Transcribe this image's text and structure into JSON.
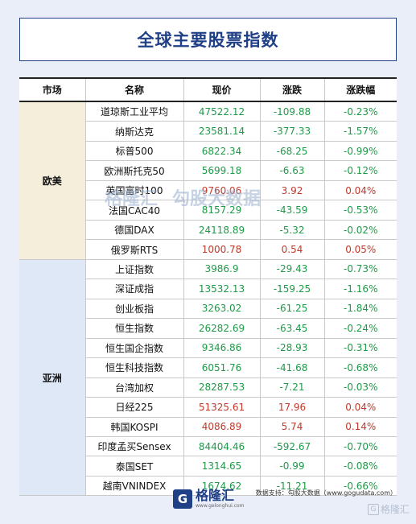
{
  "title": "全球主要股票指数",
  "headers": [
    "市场",
    "名称",
    "现价",
    "涨跌",
    "涨跌幅"
  ],
  "regions": [
    {
      "name": "欧美",
      "key": "eu",
      "rows": [
        {
          "name": "道琼斯工业平均",
          "price": "47522.12",
          "change": "-109.88",
          "pct": "-0.23%",
          "dir": "down"
        },
        {
          "name": "纳斯达克",
          "price": "23581.14",
          "change": "-377.33",
          "pct": "-1.57%",
          "dir": "down"
        },
        {
          "name": "标普500",
          "price": "6822.34",
          "change": "-68.25",
          "pct": "-0.99%",
          "dir": "down"
        },
        {
          "name": "欧洲斯托克50",
          "price": "5699.18",
          "change": "-6.63",
          "pct": "-0.12%",
          "dir": "down"
        },
        {
          "name": "英国富时100",
          "price": "9760.06",
          "change": "3.92",
          "pct": "0.04%",
          "dir": "up"
        },
        {
          "name": "法国CAC40",
          "price": "8157.29",
          "change": "-43.59",
          "pct": "-0.53%",
          "dir": "down"
        },
        {
          "name": "德国DAX",
          "price": "24118.89",
          "change": "-5.32",
          "pct": "-0.02%",
          "dir": "down"
        },
        {
          "name": "俄罗斯RTS",
          "price": "1000.78",
          "change": "0.54",
          "pct": "0.05%",
          "dir": "up"
        }
      ]
    },
    {
      "name": "亚洲",
      "key": "as",
      "rows": [
        {
          "name": "上证指数",
          "price": "3986.9",
          "change": "-29.43",
          "pct": "-0.73%",
          "dir": "down"
        },
        {
          "name": "深证成指",
          "price": "13532.13",
          "change": "-159.25",
          "pct": "-1.16%",
          "dir": "down"
        },
        {
          "name": "创业板指",
          "price": "3263.02",
          "change": "-61.25",
          "pct": "-1.84%",
          "dir": "down"
        },
        {
          "name": "恒生指数",
          "price": "26282.69",
          "change": "-63.45",
          "pct": "-0.24%",
          "dir": "down"
        },
        {
          "name": "恒生国企指数",
          "price": "9346.86",
          "change": "-28.93",
          "pct": "-0.31%",
          "dir": "down"
        },
        {
          "name": "恒生科技指数",
          "price": "6051.76",
          "change": "-41.68",
          "pct": "-0.68%",
          "dir": "down"
        },
        {
          "name": "台湾加权",
          "price": "28287.53",
          "change": "-7.21",
          "pct": "-0.03%",
          "dir": "down"
        },
        {
          "name": "日经225",
          "price": "51325.61",
          "change": "17.96",
          "pct": "0.04%",
          "dir": "up"
        },
        {
          "name": "韩国KOSPI",
          "price": "4086.89",
          "change": "5.74",
          "pct": "0.14%",
          "dir": "up"
        },
        {
          "name": "印度孟买Sensex",
          "price": "84404.46",
          "change": "-592.67",
          "pct": "-0.70%",
          "dir": "down"
        },
        {
          "name": "泰国SET",
          "price": "1314.65",
          "change": "-0.99",
          "pct": "-0.08%",
          "dir": "down"
        },
        {
          "name": "越南VNINDEX",
          "price": "1674.62",
          "change": "-11.21",
          "pct": "-0.66%",
          "dir": "down"
        }
      ]
    }
  ],
  "watermark": {
    "brand": "格隆汇",
    "brand_url": "www.gelonghui.com",
    "data_brand": "勾股大数据",
    "data_url": "www.gogudata.com"
  },
  "source": "数据支持：勾股大数据（www.gogudata.com）",
  "logo": {
    "mark": "G",
    "name": "格隆汇",
    "url": "www.gelonghui.com"
  },
  "corner": {
    "mark": "G",
    "name": "格隆汇"
  },
  "colors": {
    "up": "#c0392b",
    "down": "#1f9a48",
    "brand": "#1f3f86"
  }
}
